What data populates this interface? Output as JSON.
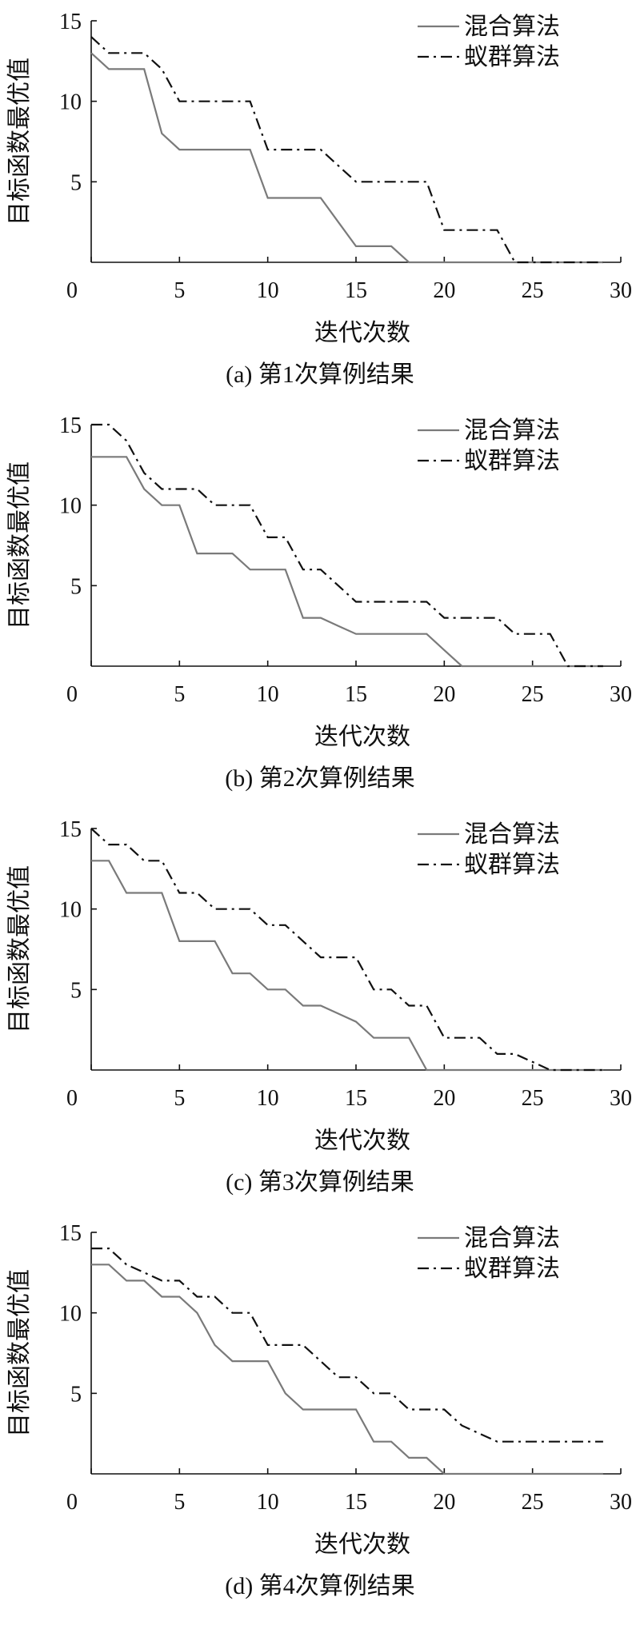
{
  "chart_data": [
    {
      "type": "line",
      "caption": "(a)  第1次算例结果",
      "xlabel": "迭代次数",
      "ylabel": "目标函数最优值",
      "xlim": [
        0,
        30
      ],
      "ylim": [
        0,
        15
      ],
      "xticks": [
        0,
        5,
        10,
        15,
        20,
        25,
        30
      ],
      "yticks": [
        5,
        10,
        15
      ],
      "legend_position": "top-right",
      "x": [
        0,
        1,
        2,
        3,
        4,
        5,
        6,
        7,
        8,
        9,
        10,
        11,
        12,
        13,
        14,
        15,
        16,
        17,
        18,
        19,
        20,
        21,
        22,
        23,
        24,
        25,
        26,
        27,
        28,
        29
      ],
      "series": [
        {
          "name": "混合算法",
          "values": [
            13,
            12,
            12,
            12,
            8,
            7,
            7,
            7,
            7,
            7,
            4,
            4,
            4,
            4,
            2.5,
            1,
            1,
            1,
            0,
            0,
            0,
            0,
            0,
            0,
            0,
            0,
            0,
            0,
            0,
            0
          ]
        },
        {
          "name": "蚁群算法",
          "values": [
            14,
            13,
            13,
            13,
            12,
            10,
            10,
            10,
            10,
            10,
            7,
            7,
            7,
            7,
            6,
            5,
            5,
            5,
            5,
            5,
            2,
            2,
            2,
            2,
            0,
            0,
            0,
            0,
            0,
            0
          ]
        }
      ]
    },
    {
      "type": "line",
      "caption": "(b) 第2次算例结果",
      "xlabel": "迭代次数",
      "ylabel": "目标函数最优值",
      "xlim": [
        0,
        30
      ],
      "ylim": [
        0,
        15
      ],
      "xticks": [
        0,
        5,
        10,
        15,
        20,
        25,
        30
      ],
      "yticks": [
        5,
        10,
        15
      ],
      "legend_position": "top-right",
      "x": [
        0,
        1,
        2,
        3,
        4,
        5,
        6,
        7,
        8,
        9,
        10,
        11,
        12,
        13,
        14,
        15,
        16,
        17,
        18,
        19,
        20,
        21,
        22,
        23,
        24,
        25,
        26,
        27,
        28,
        29
      ],
      "series": [
        {
          "name": "混合算法",
          "values": [
            13,
            13,
            13,
            11,
            10,
            10,
            7,
            7,
            7,
            6,
            6,
            6,
            3,
            3,
            2.5,
            2,
            2,
            2,
            2,
            2,
            1,
            0,
            0,
            0,
            0,
            0,
            0,
            0,
            0,
            0
          ]
        },
        {
          "name": "蚁群算法",
          "values": [
            15,
            15,
            14,
            12,
            11,
            11,
            11,
            10,
            10,
            10,
            8,
            8,
            6,
            6,
            5,
            4,
            4,
            4,
            4,
            4,
            3,
            3,
            3,
            3,
            2,
            2,
            2,
            0,
            0,
            0
          ]
        }
      ]
    },
    {
      "type": "line",
      "caption": "(c) 第3次算例结果",
      "xlabel": "迭代次数",
      "ylabel": "目标函数最优值",
      "xlim": [
        0,
        30
      ],
      "ylim": [
        0,
        15
      ],
      "xticks": [
        0,
        5,
        10,
        15,
        20,
        25,
        30
      ],
      "yticks": [
        5,
        10,
        15
      ],
      "legend_position": "top-right",
      "x": [
        0,
        1,
        2,
        3,
        4,
        5,
        6,
        7,
        8,
        9,
        10,
        11,
        12,
        13,
        14,
        15,
        16,
        17,
        18,
        19,
        20,
        21,
        22,
        23,
        24,
        25,
        26,
        27,
        28,
        29
      ],
      "series": [
        {
          "name": "混合算法",
          "values": [
            13,
            13,
            11,
            11,
            11,
            8,
            8,
            8,
            6,
            6,
            5,
            5,
            4,
            4,
            3.5,
            3,
            2,
            2,
            2,
            0,
            0,
            0,
            0,
            0,
            0,
            0,
            0,
            0,
            0,
            0
          ]
        },
        {
          "name": "蚁群算法",
          "values": [
            15,
            14,
            14,
            13,
            13,
            11,
            11,
            10,
            10,
            10,
            9,
            9,
            8,
            7,
            7,
            7,
            5,
            5,
            4,
            4,
            2,
            2,
            2,
            1,
            1,
            0.5,
            0,
            0,
            0,
            0
          ]
        }
      ]
    },
    {
      "type": "line",
      "caption": "(d) 第4次算例结果",
      "xlabel": "迭代次数",
      "ylabel": "目标函数最优值",
      "xlim": [
        0,
        30
      ],
      "ylim": [
        0,
        15
      ],
      "xticks": [
        0,
        5,
        10,
        15,
        20,
        25,
        30
      ],
      "yticks": [
        5,
        10,
        15
      ],
      "legend_position": "top-right",
      "x": [
        0,
        1,
        2,
        3,
        4,
        5,
        6,
        7,
        8,
        9,
        10,
        11,
        12,
        13,
        14,
        15,
        16,
        17,
        18,
        19,
        20,
        21,
        22,
        23,
        24,
        25,
        26,
        27,
        28,
        29
      ],
      "series": [
        {
          "name": "混合算法",
          "values": [
            13,
            13,
            12,
            12,
            11,
            11,
            10,
            8,
            7,
            7,
            7,
            5,
            4,
            4,
            4,
            4,
            2,
            2,
            1,
            1,
            0,
            0,
            0,
            0,
            0,
            0,
            0,
            0,
            0,
            0
          ]
        },
        {
          "name": "蚁群算法",
          "values": [
            14,
            14,
            13,
            12.5,
            12,
            12,
            11,
            11,
            10,
            10,
            8,
            8,
            8,
            7,
            6,
            6,
            5,
            5,
            4,
            4,
            4,
            3,
            2.5,
            2,
            2,
            2,
            2,
            2,
            2,
            2
          ]
        }
      ]
    }
  ]
}
